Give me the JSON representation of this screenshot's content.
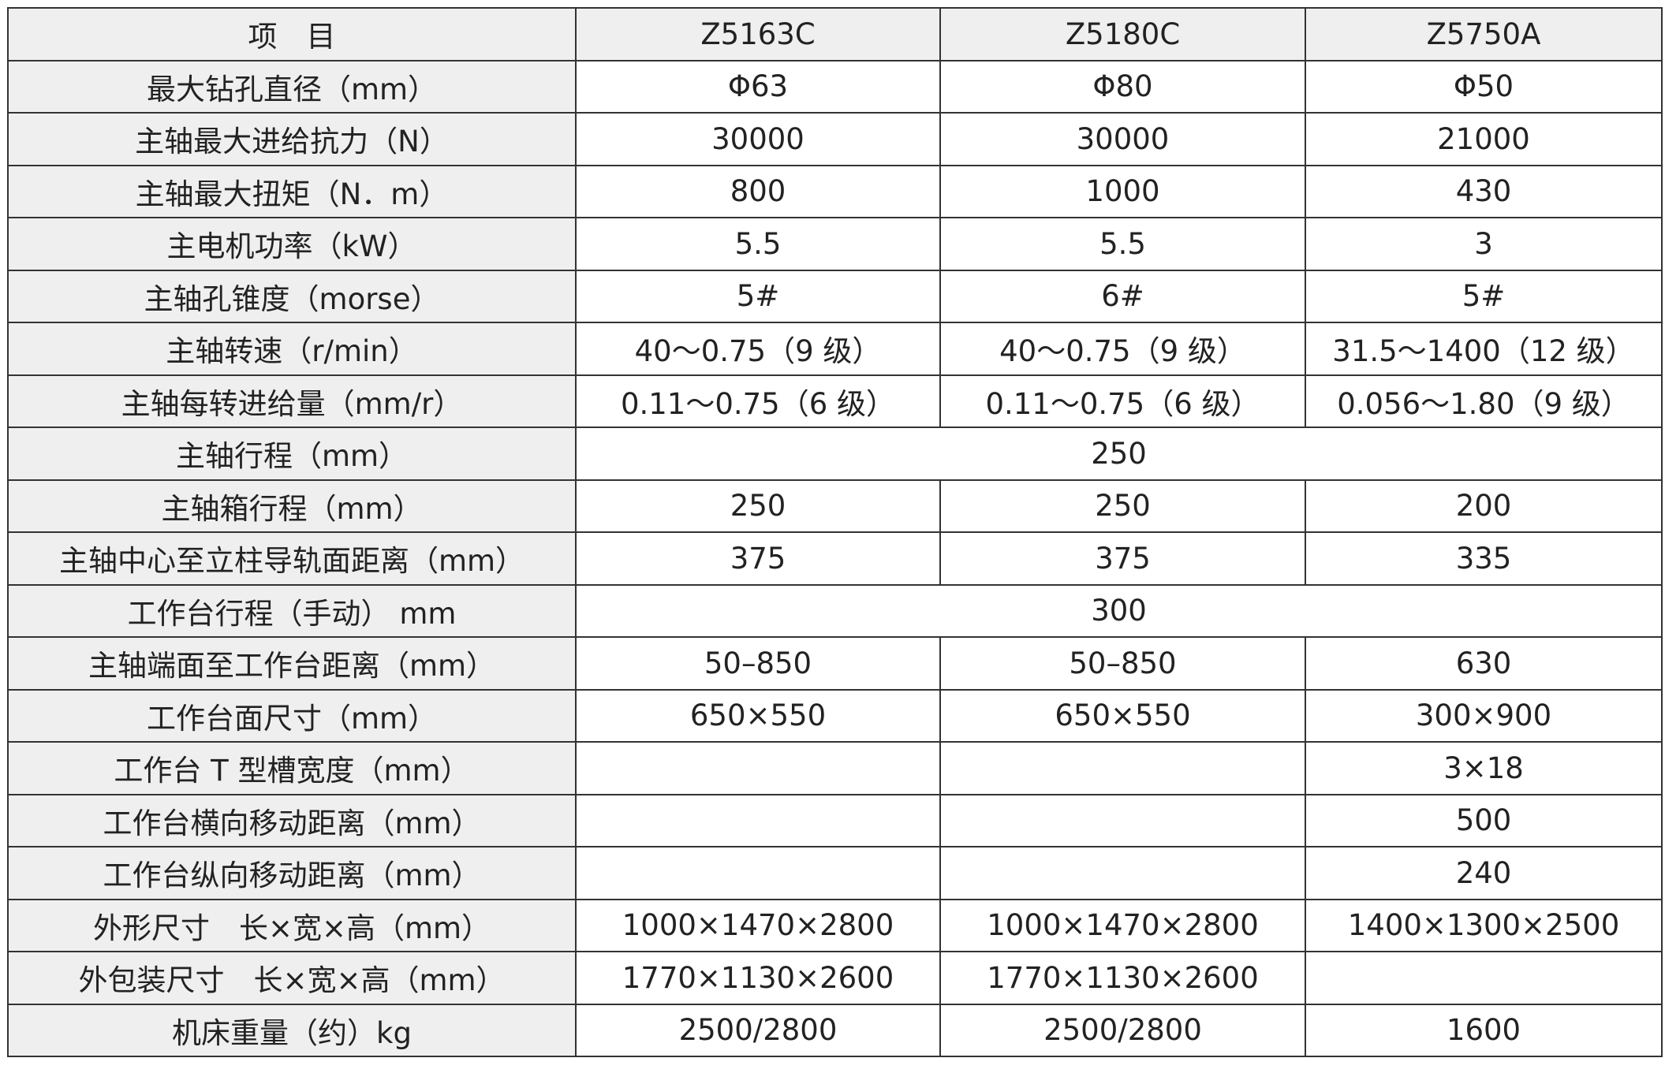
{
  "header": [
    "项　目",
    "Z5163C",
    "Z5180C",
    "Z5750A"
  ],
  "rows": [
    {
      "label": "最大钻孔直径（mm）",
      "cells": [
        "Φ63",
        "Φ80",
        "Φ50"
      ]
    },
    {
      "label": "主轴最大进给抗力（N）",
      "cells": [
        "30000",
        "30000",
        "21000"
      ]
    },
    {
      "label": "主轴最大扭矩（N．m）",
      "cells": [
        "800",
        "1000",
        "430"
      ]
    },
    {
      "label": "主电机功率（kW）",
      "cells": [
        "5.5",
        "5.5",
        "3"
      ]
    },
    {
      "label": "主轴孔锥度（morse）",
      "cells": [
        "5#",
        "6#",
        "5#"
      ]
    },
    {
      "label": "主轴转速（r/min）",
      "cells": [
        "40～0.75（9 级）",
        "40～0.75（9 级）",
        "31.5～1400（12 级）"
      ]
    },
    {
      "label": "主轴每转进给量（mm/r）",
      "cells": [
        "0.11～0.75（6 级）",
        "0.11～0.75（6 级）",
        "0.056～1.80（9 级）"
      ]
    },
    {
      "label": "主轴行程（mm）",
      "span": "250"
    },
    {
      "label": "主轴箱行程（mm）",
      "cells": [
        "250",
        "250",
        "200"
      ]
    },
    {
      "label": "主轴中心至立柱导轨面距离（mm）",
      "cells": [
        "375",
        "375",
        "335"
      ]
    },
    {
      "label": "工作台行程（手动） mm",
      "span": "300"
    },
    {
      "label": "主轴端面至工作台距离（mm）",
      "cells": [
        "50–850",
        "50–850",
        "630"
      ]
    },
    {
      "label": "工作台面尺寸（mm）",
      "cells": [
        "650×550",
        "650×550",
        "300×900"
      ]
    },
    {
      "label": "工作台 T 型槽宽度（mm）",
      "cells": [
        "",
        "",
        "3×18"
      ]
    },
    {
      "label": "工作台横向移动距离（mm）",
      "cells": [
        "",
        "",
        "500"
      ]
    },
    {
      "label": "工作台纵向移动距离（mm）",
      "cells": [
        "",
        "",
        "240"
      ]
    },
    {
      "label": "外形尺寸　长×宽×高（mm）",
      "cells": [
        "1000×1470×2800",
        "1000×1470×2800",
        "1400×1300×2500"
      ]
    },
    {
      "label": "外包装尺寸　长×宽×高（mm）",
      "cells": [
        "1770×1130×2600",
        "1770×1130×2600",
        ""
      ]
    },
    {
      "label": "机床重量（约）kg",
      "cells": [
        "2500/2800",
        "2500/2800",
        "1600"
      ]
    }
  ]
}
